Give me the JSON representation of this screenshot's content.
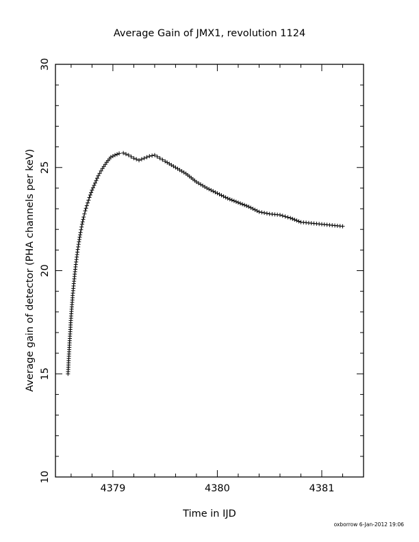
{
  "chart_data": {
    "type": "scatter",
    "title": "Average Gain of JMX1, revolution 1124",
    "xlabel": "Time in IJD",
    "ylabel": "Average gain of detector (PHA channels per keV)",
    "xlim": [
      4378.45,
      4381.4
    ],
    "ylim": [
      10,
      30
    ],
    "x_major_ticks": [
      4379,
      4380,
      4381
    ],
    "x_minor_step": 0.2,
    "y_major_ticks": [
      10,
      15,
      20,
      25,
      30
    ],
    "y_minor_step": 1,
    "marker": "plus",
    "color": "#000000",
    "series": [
      {
        "x": [
          4378.57,
          4378.585,
          4378.6,
          4378.615,
          4378.63,
          4378.645,
          4378.66,
          4378.675,
          4378.69,
          4378.705,
          4378.72,
          4378.735,
          4378.75,
          4378.775,
          4378.8,
          4378.83,
          4378.86,
          4378.9,
          4378.94,
          4378.98,
          4379.02,
          4379.06,
          4379.1,
          4379.15,
          4379.2,
          4379.25,
          4379.3,
          4379.35,
          4379.4,
          4379.45,
          4379.5,
          4379.6,
          4379.7,
          4379.8,
          4379.9,
          4380.0,
          4380.1,
          4380.2,
          4380.3,
          4380.4,
          4380.5,
          4380.6,
          4380.7,
          4380.8,
          4380.9,
          4381.0,
          4381.1,
          4381.2
        ],
        "y": [
          15.0,
          16.5,
          17.8,
          18.8,
          19.6,
          20.3,
          20.9,
          21.4,
          21.85,
          22.25,
          22.6,
          22.9,
          23.15,
          23.55,
          23.9,
          24.25,
          24.6,
          24.95,
          25.25,
          25.5,
          25.6,
          25.68,
          25.7,
          25.6,
          25.45,
          25.35,
          25.45,
          25.55,
          25.6,
          25.45,
          25.3,
          25.0,
          24.7,
          24.3,
          24.0,
          23.75,
          23.5,
          23.3,
          23.1,
          22.85,
          22.75,
          22.7,
          22.55,
          22.35,
          22.3,
          22.25,
          22.2,
          22.15
        ]
      }
    ]
  },
  "footer": {
    "credit": "oxborrow  6-Jan-2012 19:06"
  }
}
